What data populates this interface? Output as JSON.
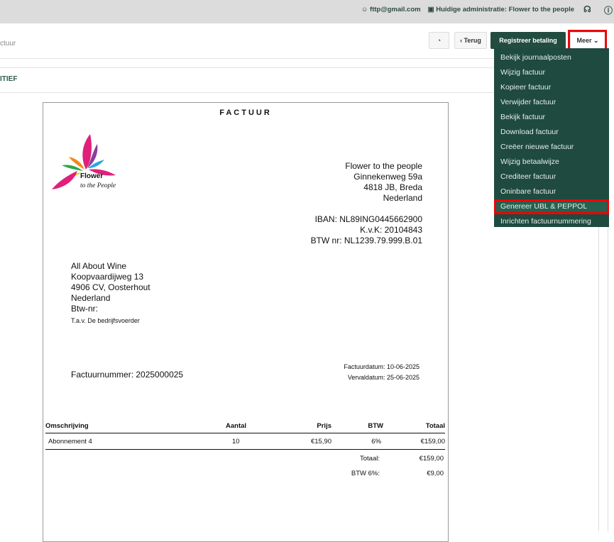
{
  "topbar": {
    "user": "fttp@gmail.com",
    "administration": "Huidige administratie: Flower to the people",
    "support_icon": "headset-icon",
    "info_icon": "info-icon"
  },
  "header": {
    "breadcrumb": "ctuur",
    "status": "ITIEF"
  },
  "toolbar": {
    "history_icon": "history-icon",
    "back": "Terug",
    "register_payment": "Registreer betaling",
    "more": "Meer"
  },
  "menu": {
    "items": [
      "Bekijk journaalposten",
      "Wijzig factuur",
      "Kopieer factuur",
      "Verwijder factuur",
      "Bekijk factuur",
      "Download factuur",
      "Creëer nieuwe factuur",
      "Wijzig betaalwijze",
      "Crediteer factuur",
      "Oninbare factuur",
      "Genereer UBL & PEPPOL",
      "Inrichten factuurnummering"
    ],
    "highlighted": "Genereer UBL & PEPPOL"
  },
  "invoice": {
    "title": "FACTUUR",
    "logo": {
      "line1": "Flower",
      "line2": "to the People"
    },
    "sender": [
      "Flower to the people",
      "Ginnekenweg 59a",
      "4818 JB, Breda",
      "Nederland"
    ],
    "bank": [
      "IBAN: NL89ING0445662900",
      "K.v.K: 20104843",
      "BTW nr: NL1239.79.999.B.01"
    ],
    "recipient": [
      "All About Wine",
      "Koopvaardijweg 13",
      "4906 CV, Oosterhout",
      "Nederland",
      "Btw-nr:"
    ],
    "attention": "T.a.v. De bedrijfsvoerder",
    "number": "Factuurnummer: 2025000025",
    "date": "Factuurdatum: 10-06-2025",
    "due": "Vervaldatum: 25-06-2025",
    "columns": [
      "Omschrijving",
      "Aantal",
      "Prijs",
      "BTW",
      "Totaal"
    ],
    "rows": [
      [
        "Abonnement 4",
        "10",
        "€15,90",
        "6%",
        "€159,00"
      ]
    ],
    "total_label": "Totaal:",
    "total": "€159,00",
    "vat_label": "BTW 6%:",
    "vat": "€9,00"
  },
  "colors": {
    "accent": "#1f4a3f",
    "highlight": "#ee0000"
  }
}
